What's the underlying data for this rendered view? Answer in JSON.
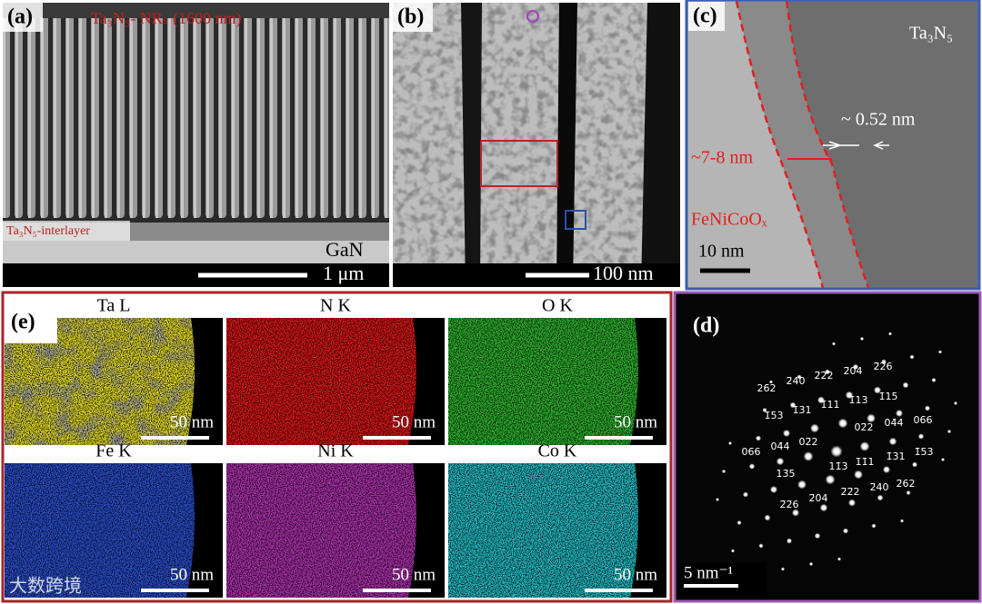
{
  "panels": {
    "a": {
      "label": "(a)",
      "annotation": "Ta₃N₅- NRₛ (1600 nm)",
      "interlayer": "Ta₃N₅-interlayer",
      "substrate": "GaN",
      "scale": "1 μm"
    },
    "b": {
      "label": "(b)",
      "scale": "100 nm"
    },
    "c": {
      "label": "(c)",
      "material": "Ta₃N₅",
      "spacing": "~ 0.52 nm",
      "thickness": "~7-8 nm",
      "coating": "FeNiCoOₓ",
      "scale": "10 nm"
    },
    "d": {
      "label": "(d)",
      "scale": "5 nm⁻¹",
      "indices": [
        "26̄2",
        "2̄40",
        "2̄22",
        "2̄04",
        "2̄2̄6",
        "1̄53",
        "1̄31",
        "1̄11",
        "1̄13",
        "1̄15",
        "02̄2",
        "04̄4",
        "06̄6",
        "06̄6",
        "04̄4",
        "02̄2",
        "11̄3",
        "1̄1̄1",
        "1̄31",
        "1̄53",
        "13̄5",
        "2̄2̄6",
        "2̄04",
        "2̄2̄2",
        "2̄40",
        "2̄62"
      ]
    },
    "e": {
      "label": "(e)",
      "maps": [
        {
          "element": "Ta L",
          "scale": "50 nm"
        },
        {
          "element": "N K",
          "scale": "50 nm"
        },
        {
          "element": "O K",
          "scale": "50 nm"
        },
        {
          "element": "Fe K",
          "scale": "50 nm"
        },
        {
          "element": "Ni K",
          "scale": "50 nm"
        },
        {
          "element": "Co K",
          "scale": "50 nm"
        }
      ]
    }
  },
  "watermark": "大数跨境"
}
